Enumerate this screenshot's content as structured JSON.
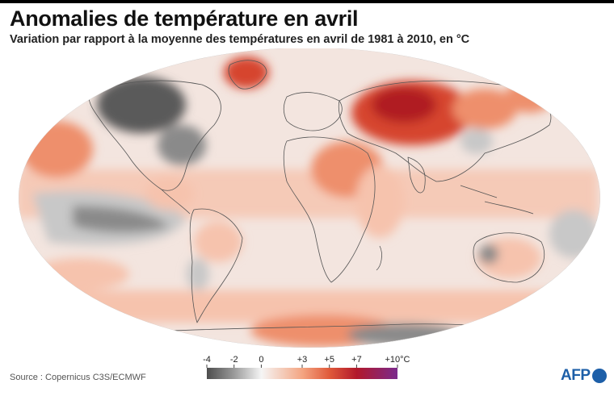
{
  "header": {
    "title": "Anomalies de température en avril",
    "subtitle": "Variation par rapport à la moyenne des températures en avril de 1981 à 2010, en °C"
  },
  "legend": {
    "stops": [
      {
        "value": -4,
        "label": "-4",
        "color": "#4d4d4d"
      },
      {
        "value": -2,
        "label": "-2",
        "color": "#9a9a9a"
      },
      {
        "value": 0,
        "label": "0",
        "color": "#f5f5f5"
      },
      {
        "value": 3,
        "label": "+3",
        "color": "#f4a582"
      },
      {
        "value": 5,
        "label": "+5",
        "color": "#e05a3a"
      },
      {
        "value": 7,
        "label": "+7",
        "color": "#b2182b"
      },
      {
        "value": 10,
        "label": "+10°C",
        "color": "#7b2a8c"
      }
    ]
  },
  "map": {
    "colors": {
      "ocean_neutral": "#f3e5df",
      "warm_light": "#f6c3ad",
      "warm": "#ee8f6c",
      "hot": "#d6452e",
      "very_hot": "#b01c24",
      "cold_light": "#c8c8c8",
      "cold": "#8a8a8a",
      "very_cold": "#5a5a5a",
      "coast": "#555555"
    }
  },
  "footer": {
    "source": "Source : Copernicus C3S/ECMWF",
    "logo_text": "AFP"
  }
}
